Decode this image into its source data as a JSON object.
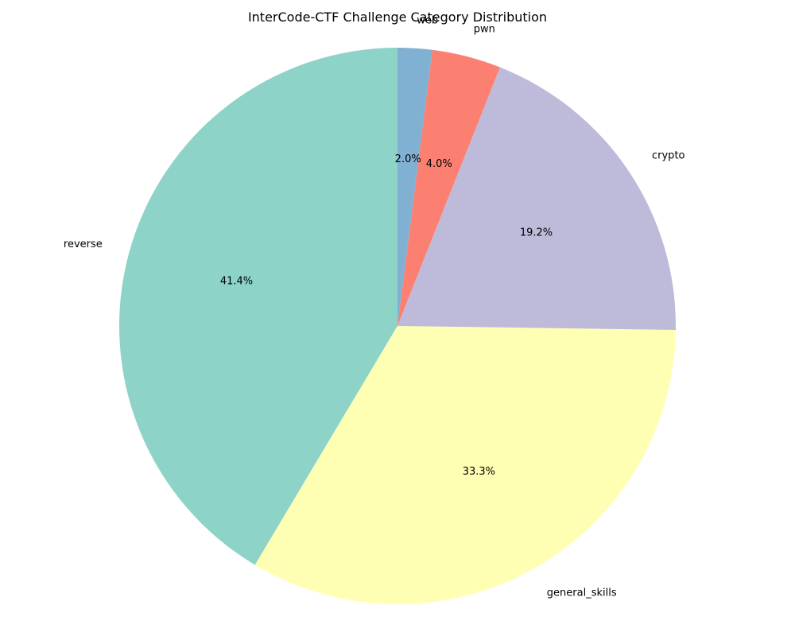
{
  "chart_data": {
    "type": "pie",
    "title": "InterCode-CTF Challenge Category Distribution",
    "start_angle_deg": 90,
    "direction": "counterclockwise",
    "slices": [
      {
        "label": "reverse",
        "value": 41.4,
        "pct_label": "41.4%",
        "color": "#8dd3c7"
      },
      {
        "label": "general_skills",
        "value": 33.3,
        "pct_label": "33.3%",
        "color": "#ffffb3"
      },
      {
        "label": "crypto",
        "value": 19.2,
        "pct_label": "19.2%",
        "color": "#bebada"
      },
      {
        "label": "pwn",
        "value": 4.0,
        "pct_label": "4.0%",
        "color": "#fb8072"
      },
      {
        "label": "web",
        "value": 2.0,
        "pct_label": "2.0%",
        "color": "#80b1d3"
      }
    ]
  }
}
